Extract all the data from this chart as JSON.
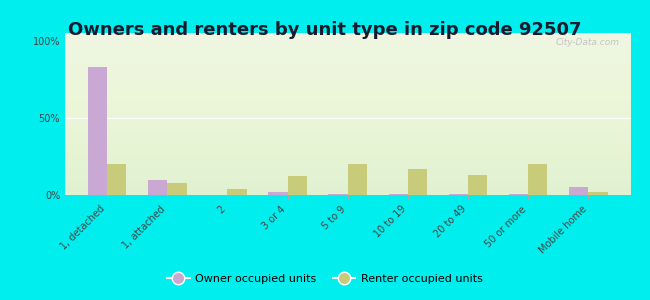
{
  "title": "Owners and renters by unit type in zip code 92507",
  "categories": [
    "1, detached",
    "1, attached",
    "2",
    "3 or 4",
    "5 to 9",
    "10 to 19",
    "20 to 49",
    "50 or more",
    "Mobile home"
  ],
  "owner_values": [
    83,
    10,
    0,
    2,
    0.5,
    0.5,
    0.5,
    0.5,
    5
  ],
  "renter_values": [
    20,
    8,
    4,
    12,
    20,
    17,
    13,
    20,
    2
  ],
  "owner_color": "#c9a8d4",
  "renter_color": "#c8cc7a",
  "outer_background": "#00eeee",
  "plot_bg_color": "#eaf5e2",
  "yticks": [
    0,
    50,
    100
  ],
  "ylabels": [
    "0%",
    "50%",
    "100%"
  ],
  "ylim": [
    0,
    105
  ],
  "title_fontsize": 13,
  "tick_label_fontsize": 7,
  "legend_owner_label": "Owner occupied units",
  "legend_renter_label": "Renter occupied units",
  "watermark": "City-Data.com"
}
